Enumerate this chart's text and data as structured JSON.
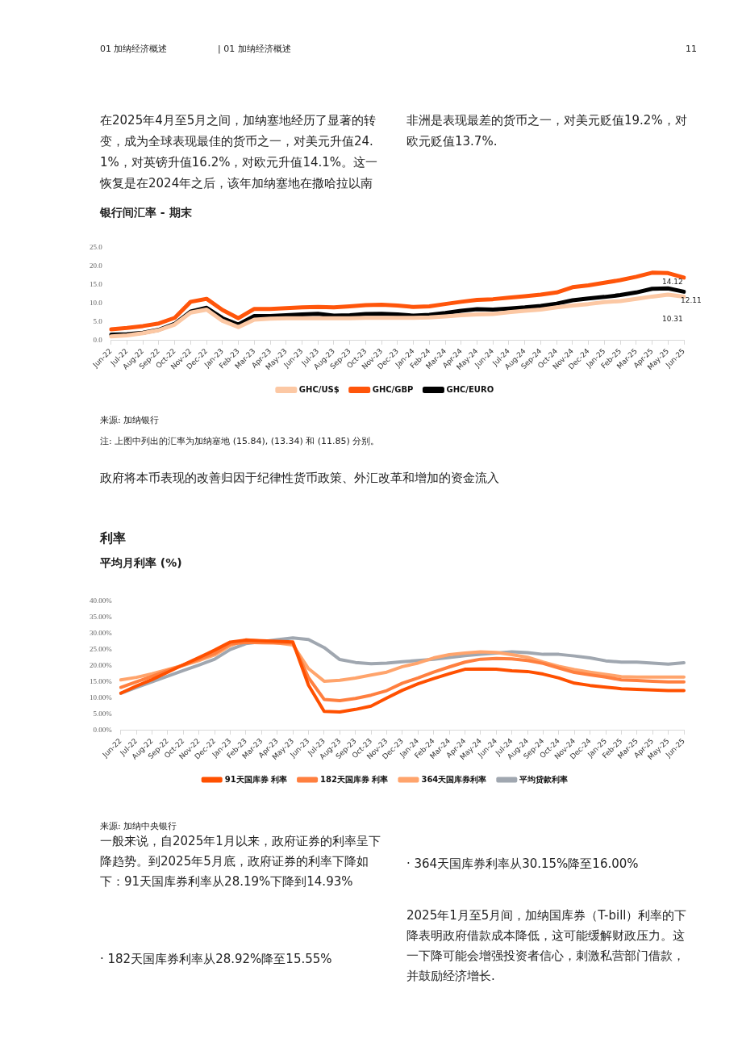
{
  "chart_data": [
    {
      "type": "line",
      "title": "银行间汇率 - 期末",
      "categories": [
        "Jun-22",
        "Jul-22",
        "Aug-22",
        "Sep-22",
        "Oct-22",
        "Nov-22",
        "Dec-22",
        "Jan-23",
        "Feb-23",
        "Mar-23",
        "Apr-23",
        "May-23",
        "Jun-23",
        "Jul-23",
        "Aug-23",
        "Sep-23",
        "Oct-23",
        "Nov-23",
        "Dec-23",
        "Jan-24",
        "Feb-24",
        "Mar-24",
        "Apr-24",
        "May-24",
        "Jun-24",
        "Jul-24",
        "Aug-24",
        "Sep-24",
        "Oct-24",
        "Nov-24",
        "Dec-24",
        "Jan-25",
        "Feb-25",
        "Mar-25",
        "Apr-25",
        "May-25",
        "Jun-25"
      ],
      "series": [
        {
          "name": "GHC/US$",
          "color": "#fcc8a4",
          "values": [
            1.1,
            1.4,
            2.0,
            2.8,
            4.3,
            7.5,
            8.3,
            5.3,
            3.6,
            5.6,
            5.9,
            6.0,
            6.0,
            6.0,
            6.0,
            6.0,
            6.1,
            6.1,
            6.1,
            6.1,
            6.2,
            6.5,
            6.8,
            7.0,
            7.1,
            7.6,
            8.0,
            8.3,
            8.9,
            9.4,
            9.8,
            10.3,
            10.6,
            11.2,
            11.8,
            12.3,
            11.8
          ]
        },
        {
          "name": "GHC/GBP",
          "color": "#ff550a",
          "values": [
            3.0,
            3.4,
            3.9,
            4.6,
            6.1,
            10.4,
            11.2,
            8.2,
            6.0,
            8.5,
            8.5,
            8.7,
            8.9,
            9.0,
            8.9,
            9.2,
            9.5,
            9.6,
            9.4,
            9.0,
            9.2,
            9.8,
            10.4,
            10.9,
            11.1,
            11.5,
            11.9,
            12.3,
            12.9,
            14.3,
            14.8,
            15.5,
            16.2,
            17.1,
            18.2,
            18.1,
            16.9
          ]
        },
        {
          "name": "GHC/EURO",
          "color": "#000000",
          "values": [
            1.6,
            1.7,
            2.1,
            2.9,
            4.5,
            7.8,
            8.8,
            6.0,
            4.3,
            6.6,
            6.6,
            6.8,
            7.0,
            7.2,
            6.7,
            6.8,
            7.1,
            7.2,
            7.0,
            6.7,
            6.9,
            7.4,
            8.0,
            8.4,
            8.3,
            8.6,
            8.9,
            9.3,
            9.9,
            10.8,
            11.3,
            11.7,
            12.2,
            12.9,
            13.9,
            14.0,
            13.1
          ]
        }
      ],
      "ylim": [
        0,
        25
      ],
      "yticks": [
        {
          "value": 0,
          "label": "0.0"
        },
        {
          "value": 5,
          "label": "5.0"
        },
        {
          "value": 10,
          "label": "10.0"
        },
        {
          "value": 15,
          "label": "15.0"
        },
        {
          "value": 20,
          "label": "20.0"
        },
        {
          "value": 25,
          "label": "25.0"
        }
      ],
      "grid": false,
      "legend": "bottom",
      "marker": "none",
      "annotations": [
        "01 加纳经济概述",
        "| 01 加纳经济概述",
        "11",
        "在2025年4月至5月之间，加纳塞地经历了显著的转变，成为全球表现最佳的货币之一，对美元升值24.1%，对英镑升值16.2%，对欧元升值14.1%。这一恢复是在2024年之后，该年加纳塞地在撒哈拉以南",
        "非洲是表现最差的货币之一，对美元贬值19.2%，对欧元贬值13.7%.",
        "来源: 加纳银行",
        "注: 上图中列出的汇率为加纳塞地 (15.84), (13.34) 和 (11.85) 分别。",
        "政府将本币表现的改善归因于纪律性货币政策、外汇改革和增加的资金流入",
        "14.12",
        "12.11",
        "10.31"
      ]
    },
    {
      "type": "line",
      "title": "利率",
      "subtitle": "平均月利率 (%)",
      "categories": [
        "Jun-22",
        "Jul-22",
        "Aug-22",
        "Sep-22",
        "Oct-22",
        "Nov-22",
        "Dec-22",
        "Jan-23",
        "Feb-23",
        "Mar-23",
        "Apr-23",
        "May-23",
        "Jun-23",
        "Jul-23",
        "Aug-23",
        "Sep-23",
        "Oct-23",
        "Nov-23",
        "Dec-23",
        "Jan-24",
        "Feb-24",
        "Mar-24",
        "Apr-24",
        "May-24",
        "Jun-24",
        "Jul-24",
        "Aug-24",
        "Sep-24",
        "Oct-24",
        "Nov-24",
        "Dec-24",
        "Jan-25",
        "Feb-25",
        "Mar-25",
        "Apr-25",
        "May-25",
        "Jun-25"
      ],
      "series": [
        {
          "name": "91天国库券 利率",
          "color": "#ff5000",
          "values": [
            11.5,
            13.7,
            15.7,
            18.0,
            20.3,
            22.5,
            24.8,
            27.3,
            27.9,
            27.7,
            27.5,
            27.3,
            14.0,
            5.9,
            5.7,
            6.5,
            7.5,
            10.0,
            12.4,
            14.4,
            16.0,
            17.5,
            18.9,
            19.0,
            18.9,
            18.4,
            18.2,
            17.4,
            16.2,
            14.6,
            13.9,
            13.4,
            12.9,
            12.7,
            12.5,
            12.3,
            12.3
          ]
        },
        {
          "name": "182天国库券 利率",
          "color": "#ff7f3f",
          "values": [
            13.3,
            15.0,
            16.7,
            18.5,
            20.2,
            22.0,
            23.8,
            26.7,
            27.2,
            27.1,
            27.0,
            27.0,
            16.3,
            9.6,
            9.2,
            9.9,
            10.9,
            12.3,
            14.6,
            16.2,
            18.0,
            19.6,
            21.1,
            22.0,
            22.2,
            22.1,
            21.6,
            20.7,
            19.3,
            17.9,
            17.2,
            16.5,
            15.6,
            15.4,
            15.2,
            15.0,
            15.0
          ]
        },
        {
          "name": "364天国库券利率",
          "color": "#ffa46c",
          "values": [
            15.6,
            16.4,
            17.5,
            18.8,
            20.1,
            21.6,
            23.3,
            26.2,
            28.0,
            27.6,
            27.0,
            26.4,
            19.1,
            15.2,
            15.5,
            16.2,
            17.1,
            18.0,
            19.7,
            20.8,
            22.4,
            23.4,
            23.9,
            24.3,
            24.1,
            23.4,
            22.6,
            21.1,
            19.8,
            18.8,
            18.0,
            17.3,
            16.6,
            16.5,
            16.5,
            16.5,
            16.5
          ]
        },
        {
          "name": "平均贷款利率",
          "color": "#a0a7b0",
          "values": [
            11.5,
            13.3,
            15.0,
            16.8,
            18.5,
            20.2,
            22.0,
            25.0,
            26.8,
            27.4,
            28.0,
            28.6,
            28.1,
            25.6,
            21.9,
            21.0,
            20.6,
            20.8,
            21.2,
            21.6,
            22.0,
            22.5,
            23.1,
            23.5,
            23.9,
            24.3,
            24.0,
            23.5,
            23.5,
            23.0,
            22.4,
            21.5,
            21.1,
            21.1,
            20.8,
            20.5,
            20.9
          ]
        }
      ],
      "ylim": [
        0,
        40
      ],
      "yticks": [
        {
          "value": 0,
          "label": "0.00%"
        },
        {
          "value": 5,
          "label": "5.00%"
        },
        {
          "value": 10,
          "label": "10.00%"
        },
        {
          "value": 15,
          "label": "15.00%"
        },
        {
          "value": 20,
          "label": "20.00%"
        },
        {
          "value": 25,
          "label": "25.00%"
        },
        {
          "value": 30,
          "label": "30.00%"
        },
        {
          "value": 35,
          "label": "35.00%"
        },
        {
          "value": 40,
          "label": "40.00%"
        }
      ],
      "grid": false,
      "legend": "bottom",
      "marker": "none",
      "annotations": [
        "来源:  加纳中央银行",
        "一般来说，自2025年1月以来，政府证券的利率呈下降趋势。到2025年5月底，政府证券的利率下降如下：91天国库券利率从28.19%下降到14.93%",
        "·   182天国库券利率从28.92%降至15.55%",
        "·   364天国库券利率从30.15%降至16.00%",
        "2025年1月至5月间，加纳国库券（T-bill）利率的下降表明政府借款成本降低，这可能缓解财政压力。这一下降可能会增强投资者信心，刺激私营部门借款，并鼓励经济增长."
      ]
    }
  ]
}
